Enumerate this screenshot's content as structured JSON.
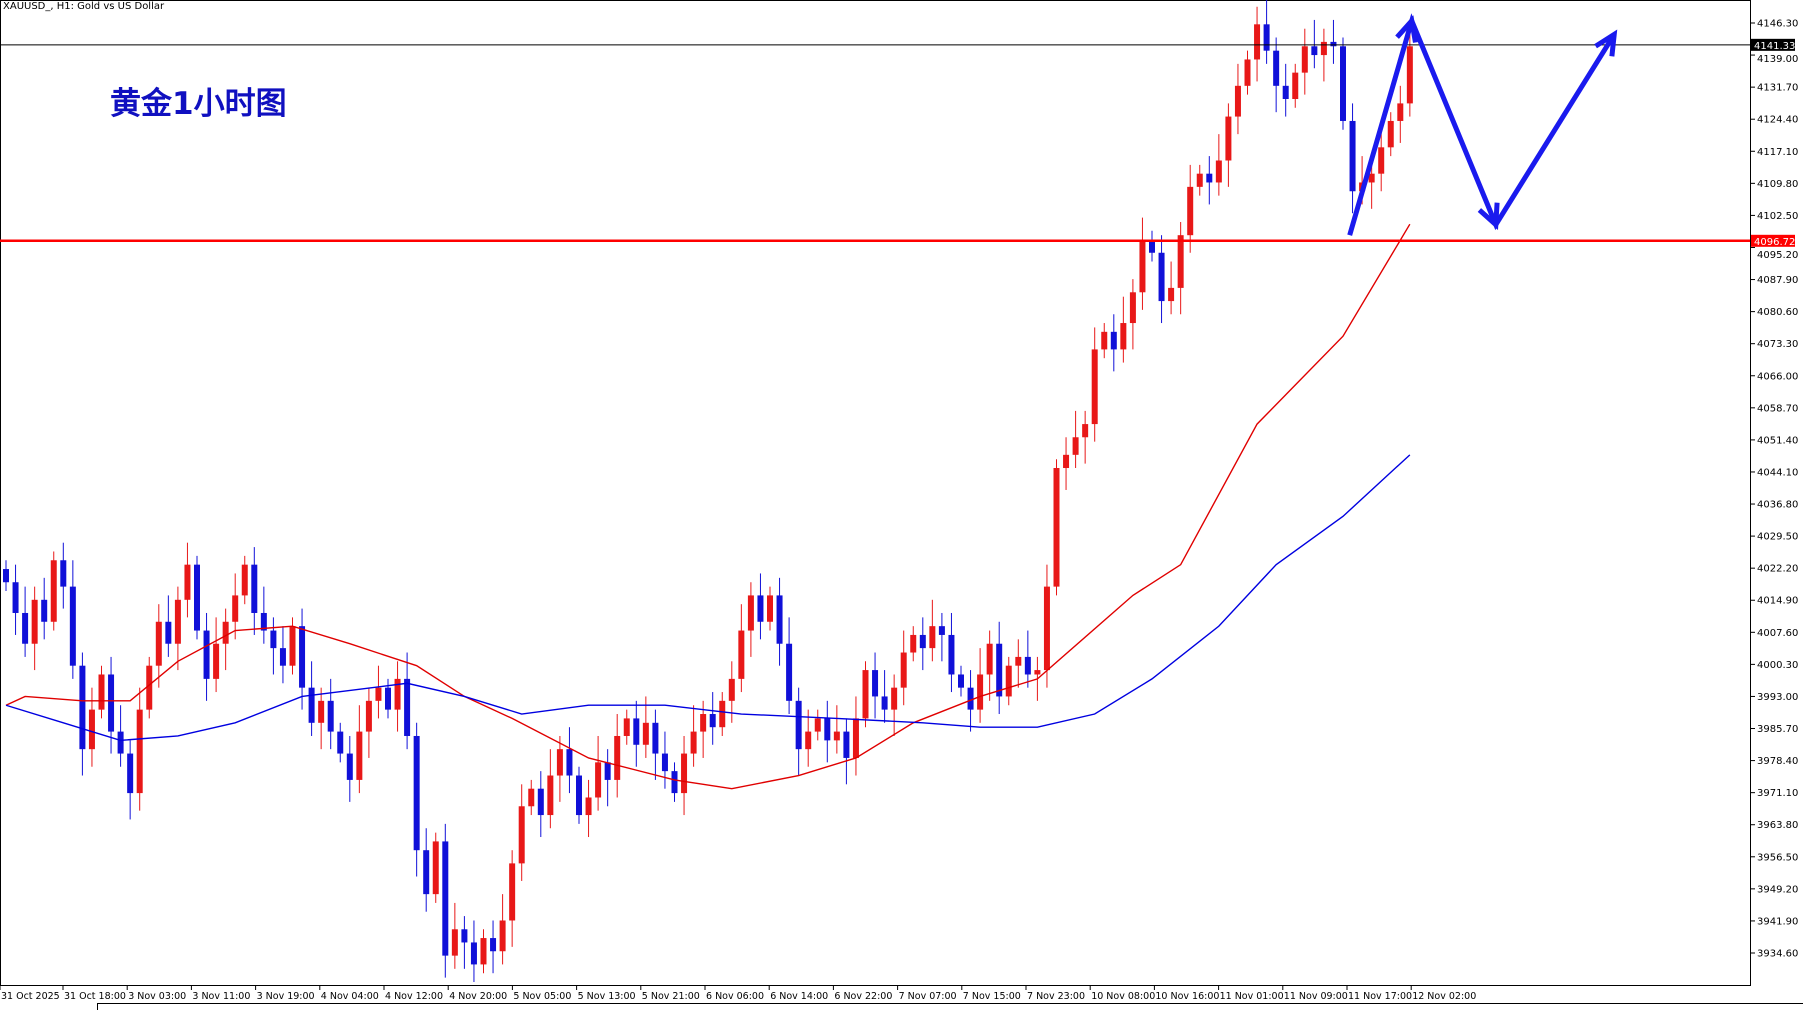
{
  "header": {
    "symbol_label": "XAUUSD_, H1:  Gold vs US Dollar",
    "title": "黄金1小时图"
  },
  "chart_data": {
    "type": "candlestick",
    "title": "黄金1小时图",
    "symbol": "XAUUSD_",
    "timeframe": "H1",
    "ylim": [
      3931.0,
      4151.0
    ],
    "y_ticks": [
      "4146.30",
      "4139.00",
      "4131.70",
      "4124.40",
      "4117.10",
      "4109.80",
      "4102.50",
      "4095.20",
      "4087.90",
      "4080.60",
      "4073.30",
      "4066.00",
      "4058.70",
      "4051.40",
      "4044.10",
      "4036.80",
      "4029.50",
      "4022.20",
      "4014.90",
      "4007.60",
      "4000.30",
      "3993.00",
      "3985.70",
      "3978.40",
      "3971.10",
      "3963.80",
      "3956.50",
      "3949.20",
      "3941.90",
      "3934.60"
    ],
    "x_ticks": [
      "31 Oct 2025",
      "31 Oct 18:00",
      "3 Nov 03:00",
      "3 Nov 11:00",
      "3 Nov 19:00",
      "4 Nov 04:00",
      "4 Nov 12:00",
      "4 Nov 20:00",
      "5 Nov 05:00",
      "5 Nov 13:00",
      "5 Nov 21:00",
      "6 Nov 06:00",
      "6 Nov 14:00",
      "6 Nov 22:00",
      "7 Nov 07:00",
      "7 Nov 15:00",
      "7 Nov 23:00",
      "10 Nov 08:00",
      "10 Nov 16:00",
      "11 Nov 01:00",
      "11 Nov 09:00",
      "11 Nov 17:00",
      "12 Nov 02:00"
    ],
    "close": [
      4019,
      4012,
      4005,
      4015,
      4010,
      4024,
      4018,
      4000,
      3981,
      3990,
      3998,
      3985,
      3980,
      3971,
      3990,
      4000,
      4010,
      4005,
      4015,
      4023,
      4008,
      3997,
      4005,
      4010,
      4016,
      4023,
      4012,
      4008,
      4004,
      4000,
      4009,
      3995,
      3987,
      3992,
      3985,
      3980,
      3974,
      3985,
      3992,
      3995,
      3990,
      3997,
      3984,
      3958,
      3948,
      3960,
      3934,
      3940,
      3937,
      3932,
      3938,
      3935,
      3942,
      3955,
      3968,
      3972,
      3966,
      3975,
      3981,
      3975,
      3966,
      3970,
      3978,
      3974,
      3984,
      3988,
      3982,
      3987,
      3980,
      3976,
      3971,
      3980,
      3985,
      3989,
      3986,
      3992,
      3997,
      4008,
      4016,
      4010,
      4016,
      4005,
      3992,
      3981,
      3985,
      3988,
      3983,
      3985,
      3979,
      3988,
      3999,
      3993,
      3990,
      3995,
      4003,
      4007,
      4004,
      4009,
      4007,
      3998,
      3995,
      3990,
      3998,
      4005,
      3993,
      4000,
      4002,
      3998,
      3999,
      4018,
      4045,
      4048,
      4052,
      4055,
      4072,
      4076,
      4072,
      4078,
      4085,
      4097,
      4094,
      4083,
      4086,
      4098,
      4109,
      4112,
      4110,
      4115,
      4125,
      4132,
      4138,
      4146,
      4140,
      4132,
      4129,
      4135,
      4141,
      4139,
      4142,
      4141,
      4124,
      4108,
      4110,
      4112,
      4118,
      4124,
      4128,
      4141
    ],
    "ma_fast": {
      "color": "#e00000",
      "points": [
        [
          0,
          3991
        ],
        [
          2,
          3993
        ],
        [
          8,
          3992
        ],
        [
          13,
          3992
        ],
        [
          18,
          4001
        ],
        [
          24,
          4008
        ],
        [
          30,
          4009
        ],
        [
          36,
          4005
        ],
        [
          43,
          4000
        ],
        [
          48,
          3993
        ],
        [
          53,
          3988
        ],
        [
          61,
          3979
        ],
        [
          70,
          3974
        ],
        [
          76,
          3972
        ],
        [
          83,
          3975
        ],
        [
          89,
          3979
        ],
        [
          95,
          3987
        ],
        [
          102,
          3993
        ],
        [
          108,
          3997
        ],
        [
          118,
          4016
        ],
        [
          123,
          4023
        ],
        [
          131,
          4055
        ],
        [
          140,
          4075
        ],
        [
          147,
          4100.5
        ]
      ]
    },
    "ma_slow": {
      "color": "#0000e0",
      "points": [
        [
          0,
          3991
        ],
        [
          6,
          3987
        ],
        [
          12,
          3983
        ],
        [
          18,
          3984
        ],
        [
          24,
          3987
        ],
        [
          31,
          3993
        ],
        [
          42,
          3996
        ],
        [
          48,
          3993
        ],
        [
          54,
          3989
        ],
        [
          61,
          3991
        ],
        [
          69,
          3991
        ],
        [
          77,
          3989
        ],
        [
          87,
          3988
        ],
        [
          96,
          3987
        ],
        [
          102,
          3986
        ],
        [
          108,
          3986
        ],
        [
          114,
          3989
        ],
        [
          120,
          3997
        ],
        [
          127,
          4009
        ],
        [
          133,
          4023
        ],
        [
          140,
          4034
        ],
        [
          147,
          4048
        ]
      ]
    },
    "hlines": [
      {
        "price": 4141.33,
        "label": "4141.33",
        "color": "#000000"
      },
      {
        "price": 4096.72,
        "label": "4096.72",
        "color": "#ff0000"
      }
    ],
    "projection": {
      "color": "#1a1aee",
      "points": [
        [
          140.7,
          4098
        ],
        [
          147.2,
          4146.8
        ],
        [
          156,
          4100.4
        ],
        [
          168.4,
          4143.7
        ]
      ]
    },
    "colors": {
      "bull": "#e81818",
      "bear": "#1010d8"
    }
  }
}
